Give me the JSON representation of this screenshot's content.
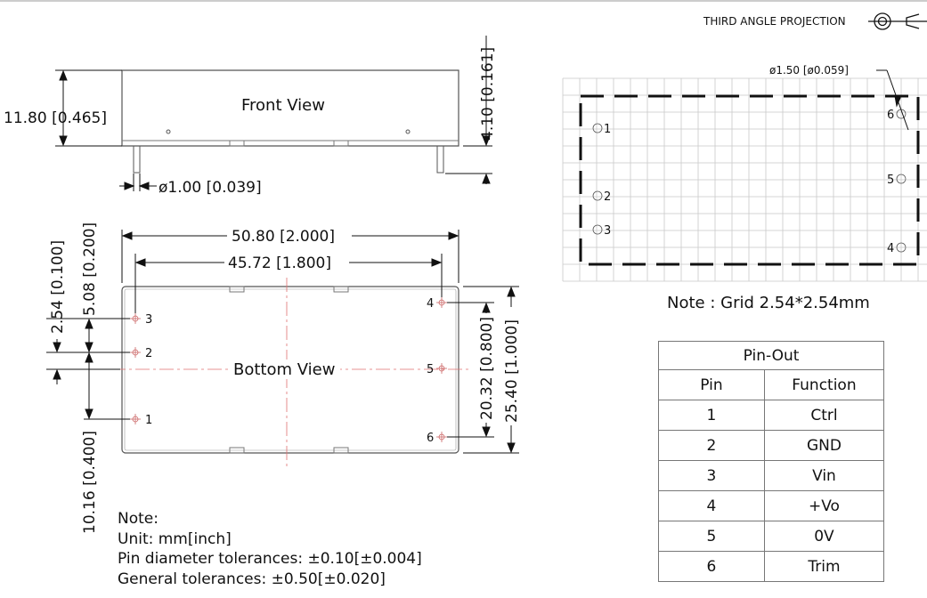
{
  "projection": {
    "label": "THIRD ANGLE PROJECTION"
  },
  "front_view": {
    "title": "Front View",
    "height_dim": "11.80 [0.465]",
    "pin_length_dim": "4.10 [0.161]",
    "pin_diameter_dim": "ø1.00 [0.039]"
  },
  "bottom_view": {
    "title": "Bottom View",
    "width_dim": "50.80 [2.000]",
    "pin_span_dim": "45.72 [1.800]",
    "pin_pitch_dim": "2.54 [0.100]",
    "pin_offset_dim": "5.08 [0.200]",
    "pin_edge_dim": "10.16 [0.400]",
    "pin_row_dim": "20.32 [0.800]",
    "depth_dim": "25.40 [1.000]",
    "pins": [
      "1",
      "2",
      "3",
      "4",
      "5",
      "6"
    ]
  },
  "pcb_layout": {
    "hole_dim": "ø1.50 [ø0.059]",
    "pins": [
      "1",
      "2",
      "3",
      "4",
      "5",
      "6"
    ],
    "note": "Note : Grid 2.54*2.54mm"
  },
  "notes": {
    "heading": "Note:",
    "unit": "Unit: mm[inch]",
    "pin_tolerance": "Pin diameter tolerances: ±0.10[±0.004]",
    "general_tolerance": "General tolerances: ±0.50[±0.020]"
  },
  "pinout_table": {
    "title": "Pin-Out",
    "headers": [
      "Pin",
      "Function"
    ],
    "rows": [
      [
        "1",
        "Ctrl"
      ],
      [
        "2",
        "GND"
      ],
      [
        "3",
        "Vin"
      ],
      [
        "4",
        "+Vo"
      ],
      [
        "5",
        "0V"
      ],
      [
        "6",
        "Trim"
      ]
    ]
  }
}
